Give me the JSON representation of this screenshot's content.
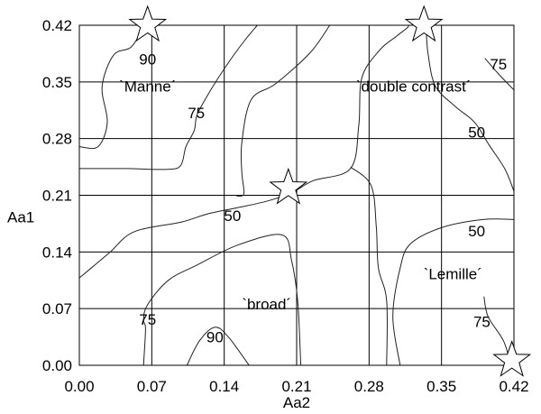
{
  "chart_data": {
    "type": "contour",
    "xlabel": "Aa2",
    "ylabel": "Aa1",
    "xlim": [
      0,
      0.42
    ],
    "ylim": [
      0,
      0.42
    ],
    "grid": true,
    "x_ticks": [
      "0.00",
      "0.07",
      "0.14",
      "0.21",
      "0.28",
      "0.35",
      "0.42"
    ],
    "y_ticks": [
      "0.00",
      "0.07",
      "0.14",
      "0.21",
      "0.28",
      "0.35",
      "0.42"
    ],
    "contour_labels": [
      {
        "text": "90",
        "x": 0.066,
        "y": 0.378
      },
      {
        "text": "75",
        "x": 0.113,
        "y": 0.312
      },
      {
        "text": "50",
        "x": 0.148,
        "y": 0.185
      },
      {
        "text": "75",
        "x": 0.066,
        "y": 0.057
      },
      {
        "text": "90",
        "x": 0.131,
        "y": 0.035
      },
      {
        "text": "75",
        "x": 0.405,
        "y": 0.372
      },
      {
        "text": "50",
        "x": 0.384,
        "y": 0.288
      },
      {
        "text": "50",
        "x": 0.384,
        "y": 0.166
      },
      {
        "text": "75",
        "x": 0.389,
        "y": 0.054
      }
    ],
    "regions": [
      {
        "label": "`Manne´",
        "x": 0.066,
        "y": 0.345
      },
      {
        "label": "`double contrast´",
        "x": 0.323,
        "y": 0.345
      },
      {
        "label": "`broad´",
        "x": 0.181,
        "y": 0.076
      },
      {
        "label": "`Lemille´",
        "x": 0.361,
        "y": 0.113
      }
    ],
    "markers": [
      {
        "shape": "star",
        "x": 0.066,
        "y": 0.42
      },
      {
        "shape": "star",
        "x": 0.333,
        "y": 0.42
      },
      {
        "shape": "star",
        "x": 0.202,
        "y": 0.219
      },
      {
        "shape": "star",
        "x": 0.418,
        "y": 0.006
      }
    ],
    "contours": [
      {
        "level": 90,
        "points": [
          [
            0.0,
            0.27
          ],
          [
            0.018,
            0.27
          ],
          [
            0.027,
            0.3
          ],
          [
            0.022,
            0.344
          ],
          [
            0.033,
            0.383
          ],
          [
            0.05,
            0.393
          ],
          [
            0.062,
            0.417
          ],
          [
            0.063,
            0.42
          ]
        ]
      },
      {
        "level": 75,
        "points": [
          [
            0.0,
            0.243
          ],
          [
            0.045,
            0.243
          ],
          [
            0.085,
            0.242
          ],
          [
            0.098,
            0.247
          ],
          [
            0.103,
            0.27
          ],
          [
            0.111,
            0.29
          ],
          [
            0.114,
            0.31
          ],
          [
            0.127,
            0.34
          ],
          [
            0.142,
            0.37
          ],
          [
            0.159,
            0.4
          ],
          [
            0.172,
            0.42
          ]
        ]
      },
      {
        "level": 50,
        "points": [
          [
            0.0,
            0.108
          ],
          [
            0.016,
            0.125
          ],
          [
            0.03,
            0.14
          ],
          [
            0.053,
            0.165
          ],
          [
            0.099,
            0.177
          ],
          [
            0.124,
            0.187
          ],
          [
            0.154,
            0.195
          ],
          [
            0.182,
            0.203
          ],
          [
            0.205,
            0.213
          ],
          [
            0.226,
            0.228
          ],
          [
            0.262,
            0.243
          ],
          [
            0.27,
            0.296
          ],
          [
            0.273,
            0.355
          ],
          [
            0.29,
            0.389
          ],
          [
            0.306,
            0.406
          ],
          [
            0.317,
            0.417
          ],
          [
            0.318,
            0.42
          ]
        ]
      },
      {
        "level": 50,
        "points": [
          [
            0.242,
            0.42
          ],
          [
            0.223,
            0.386
          ],
          [
            0.19,
            0.348
          ],
          [
            0.166,
            0.328
          ],
          [
            0.157,
            0.275
          ],
          [
            0.157,
            0.238
          ],
          [
            0.159,
            0.212
          ],
          [
            0.152,
            0.209
          ]
        ]
      },
      {
        "level": 75,
        "points": [
          [
            0.062,
            0.0
          ],
          [
            0.064,
            0.045
          ],
          [
            0.062,
            0.056
          ],
          [
            0.066,
            0.075
          ],
          [
            0.086,
            0.105
          ],
          [
            0.114,
            0.124
          ],
          [
            0.154,
            0.149
          ],
          [
            0.196,
            0.161
          ],
          [
            0.205,
            0.13
          ],
          [
            0.211,
            0.08
          ],
          [
            0.214,
            0.0
          ]
        ]
      },
      {
        "level": 90,
        "points": [
          [
            0.104,
            0.0
          ],
          [
            0.116,
            0.03
          ],
          [
            0.131,
            0.047
          ],
          [
            0.144,
            0.035
          ],
          [
            0.164,
            0.0
          ]
        ]
      },
      {
        "level": 50,
        "points": [
          [
            0.297,
            0.0
          ],
          [
            0.297,
            0.08
          ],
          [
            0.289,
            0.12
          ],
          [
            0.287,
            0.17
          ],
          [
            0.282,
            0.222
          ],
          [
            0.262,
            0.245
          ]
        ]
      },
      {
        "level": 50,
        "points": [
          [
            0.31,
            0.0
          ],
          [
            0.303,
            0.06
          ],
          [
            0.31,
            0.12
          ],
          [
            0.32,
            0.15
          ],
          [
            0.35,
            0.17
          ],
          [
            0.39,
            0.18
          ],
          [
            0.42,
            0.18
          ]
        ]
      },
      {
        "level": 50,
        "points": [
          [
            0.42,
            0.215
          ],
          [
            0.411,
            0.243
          ],
          [
            0.396,
            0.272
          ],
          [
            0.382,
            0.3
          ],
          [
            0.363,
            0.32
          ],
          [
            0.344,
            0.345
          ],
          [
            0.337,
            0.385
          ],
          [
            0.335,
            0.42
          ]
        ]
      },
      {
        "level": 75,
        "points": [
          [
            0.391,
            0.085
          ],
          [
            0.395,
            0.06
          ],
          [
            0.41,
            0.03
          ],
          [
            0.417,
            0.0
          ]
        ]
      },
      {
        "level": 75,
        "points": [
          [
            0.392,
            0.379
          ],
          [
            0.405,
            0.36
          ],
          [
            0.42,
            0.34
          ]
        ]
      }
    ]
  }
}
